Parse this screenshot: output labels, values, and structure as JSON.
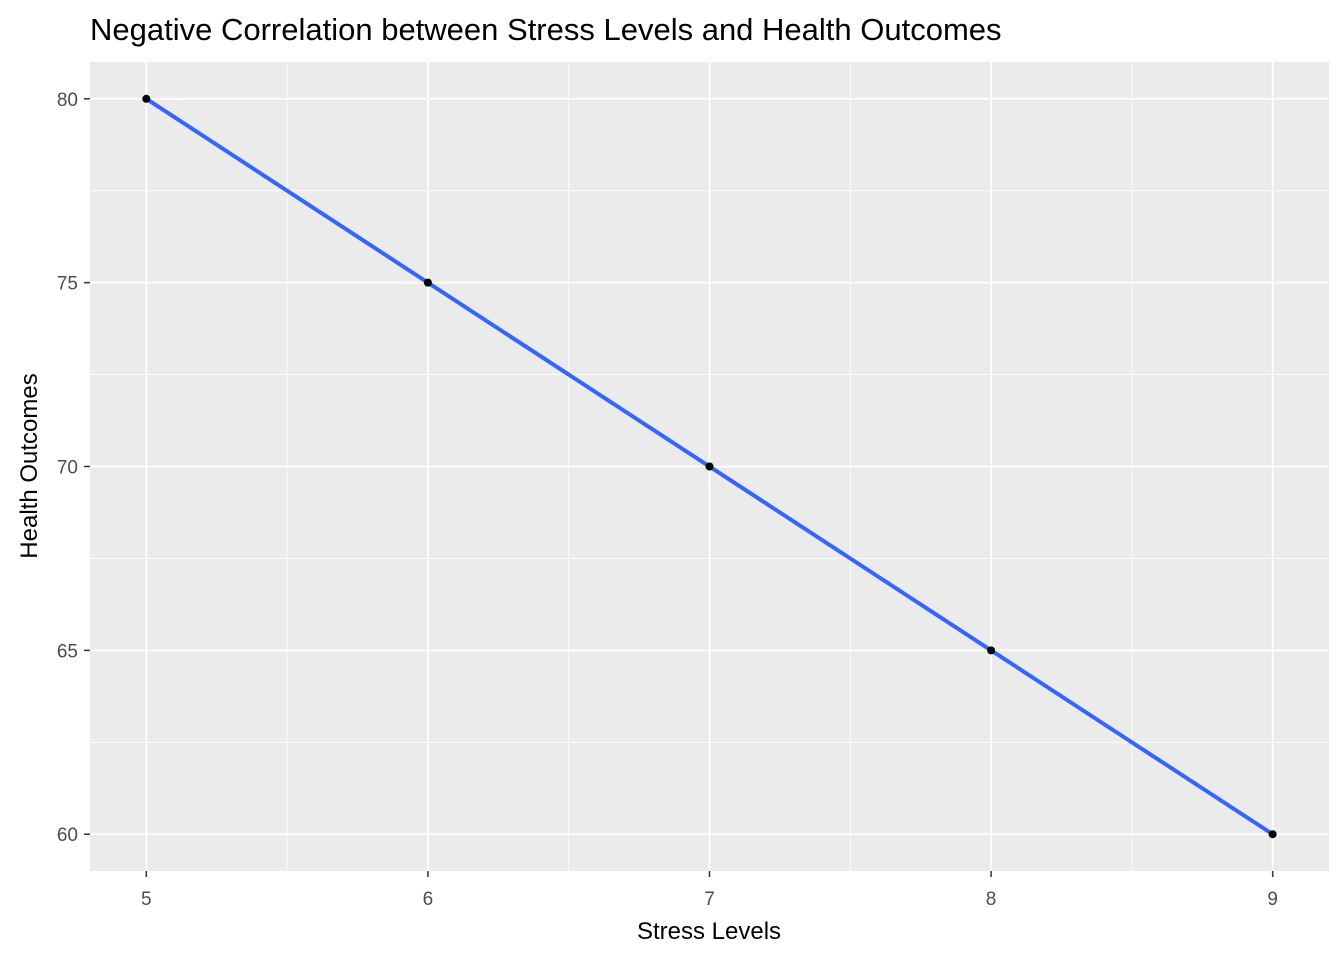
{
  "chart_data": {
    "type": "scatter",
    "title": "Negative Correlation between Stress Levels and Health Outcomes",
    "xlabel": "Stress Levels",
    "ylabel": "Health Outcomes",
    "x": [
      5,
      6,
      7,
      8,
      9
    ],
    "y": [
      80,
      75,
      70,
      65,
      60
    ],
    "xlim": [
      4.8,
      9.2
    ],
    "ylim": [
      59,
      81
    ],
    "x_ticks": [
      5,
      6,
      7,
      8,
      9
    ],
    "x_tick_labels": [
      "5",
      "6",
      "7",
      "8",
      "9"
    ],
    "y_ticks": [
      60,
      65,
      70,
      75,
      80
    ],
    "y_tick_labels": [
      "60",
      "65",
      "70",
      "75",
      "80"
    ],
    "x_minor_ticks": [
      5.5,
      6.5,
      7.5,
      8.5
    ],
    "y_minor_ticks": [
      62.5,
      67.5,
      72.5,
      77.5
    ],
    "fit_line": {
      "x": [
        5,
        9
      ],
      "y": [
        80,
        60
      ]
    },
    "grid": true,
    "legend": "none",
    "colors": {
      "panel_background": "#ebebeb",
      "grid": "#ffffff",
      "points": "#000000",
      "fit_line": "#3366ff",
      "tick_label": "#4d4d4d",
      "tick_mark": "#333333"
    }
  }
}
